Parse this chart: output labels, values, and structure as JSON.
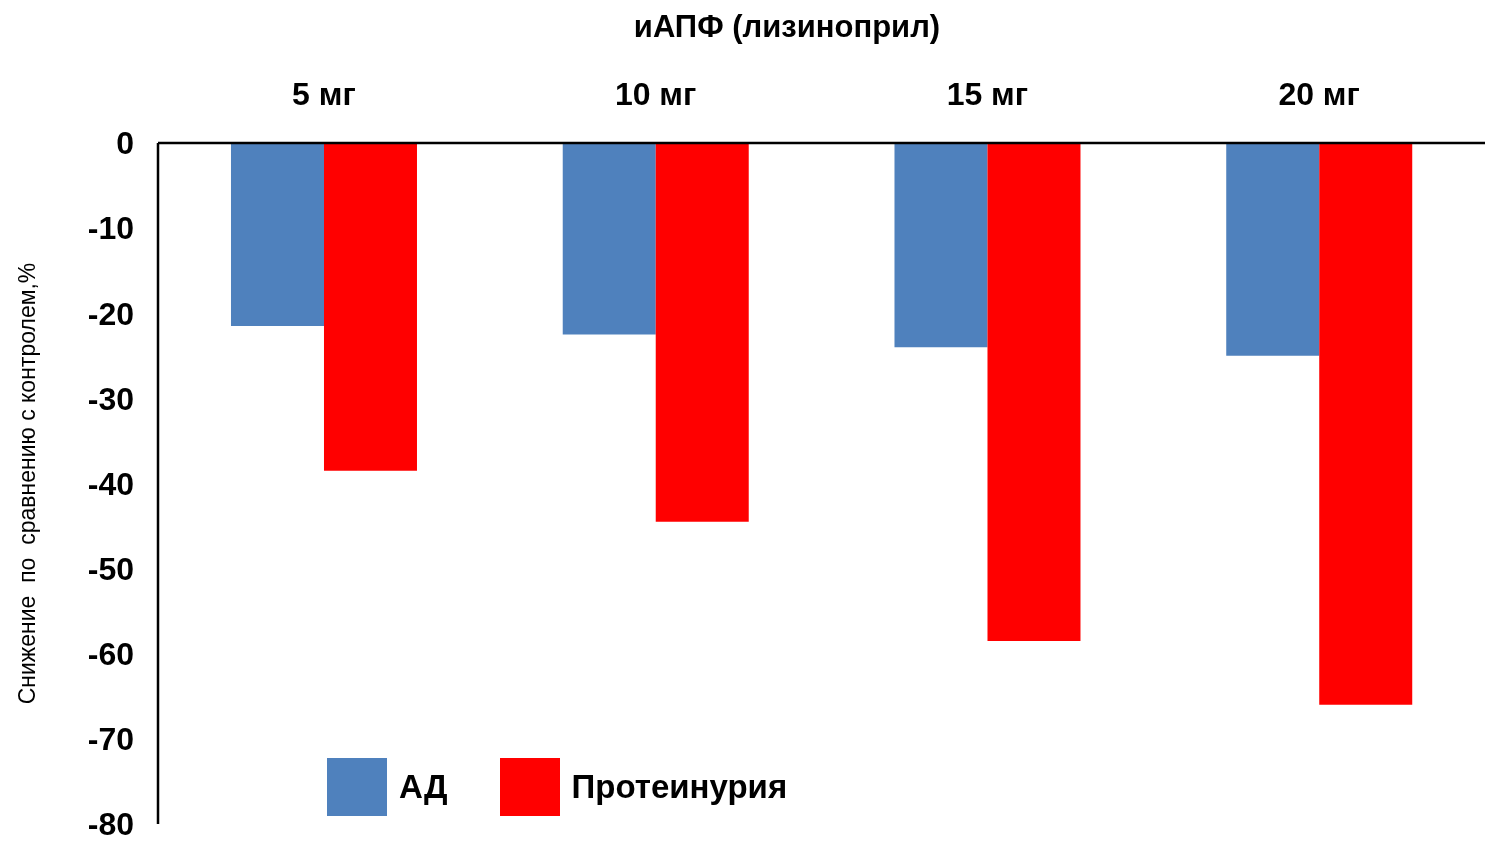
{
  "chart_data": {
    "type": "bar",
    "title": "иАПФ (лизиноприл)",
    "ylabel": "Снижение  по  сравнению с контролем,%",
    "categories": [
      "5 мг",
      "10 мг",
      "15 мг",
      "20 мг"
    ],
    "series": [
      {
        "name": "АД",
        "color": "#4f81bd",
        "values": [
          -21.5,
          -22.5,
          -24,
          -25
        ]
      },
      {
        "name": "Протеинурия",
        "color": "#ff0000",
        "values": [
          -38.5,
          -44.5,
          -58.5,
          -66
        ]
      }
    ],
    "ylim": [
      -80,
      0
    ],
    "yticks": [
      -80,
      -70,
      -60,
      -50,
      -40,
      -30,
      -20,
      -10,
      0
    ],
    "legend": "bottom left"
  }
}
